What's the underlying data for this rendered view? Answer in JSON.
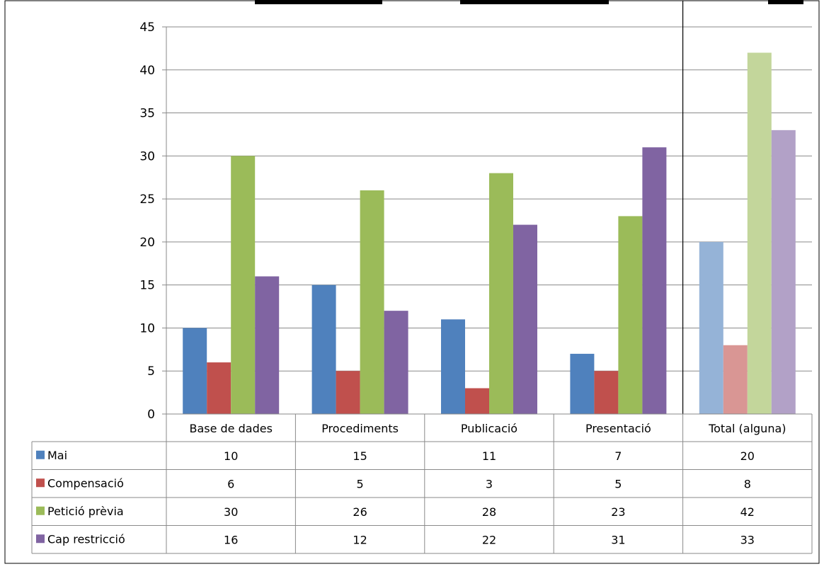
{
  "chart_data": {
    "type": "bar",
    "title": "",
    "xlabel": "",
    "ylabel": "",
    "ylim": [
      0,
      45
    ],
    "yticks": [
      0,
      5,
      10,
      15,
      20,
      25,
      30,
      35,
      40,
      45
    ],
    "grid": true,
    "legend": "data-table-left",
    "categories": [
      "Base de dades",
      "Procediments",
      "Publicació",
      "Presentació",
      "Total (alguna)"
    ],
    "series": [
      {
        "name": "Mai",
        "values": [
          10,
          15,
          11,
          7,
          20
        ],
        "color": "#4f81bd",
        "total_color": "#95b3d7"
      },
      {
        "name": "Compensació",
        "values": [
          6,
          5,
          3,
          5,
          8
        ],
        "color": "#c0504d",
        "total_color": "#d99694"
      },
      {
        "name": "Petició prèvia",
        "values": [
          30,
          26,
          28,
          23,
          42
        ],
        "color": "#9bbb59",
        "total_color": "#c3d69b"
      },
      {
        "name": "Cap restricció",
        "values": [
          16,
          12,
          22,
          31,
          33
        ],
        "color": "#8064a2",
        "total_color": "#b2a1c7"
      }
    ]
  }
}
